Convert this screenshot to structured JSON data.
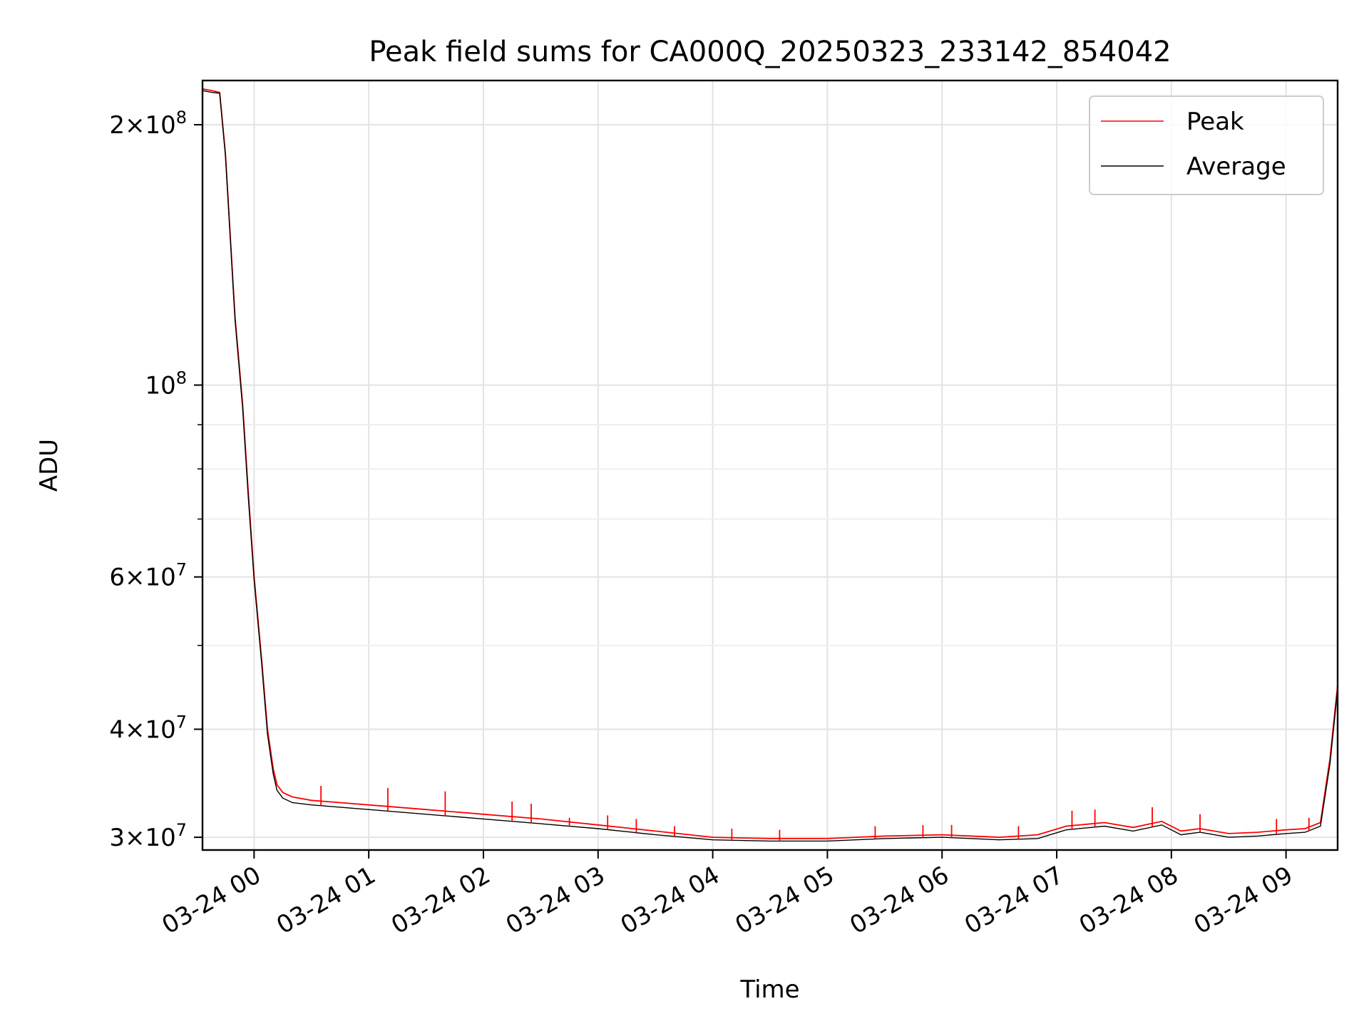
{
  "chart_data": {
    "type": "line",
    "title": "Peak field sums for CA000Q_20250323_233142_854042",
    "xlabel": "Time",
    "ylabel": "ADU",
    "yscale": "log",
    "ylim": [
      29000000,
      225000000
    ],
    "xlim": [
      "2025-03-23 23:33",
      "2025-03-24 09:27"
    ],
    "grid": true,
    "legend_position": "top-right",
    "x_ticks": [
      {
        "value": "2025-03-24 00:00",
        "label": "03-24 00"
      },
      {
        "value": "2025-03-24 01:00",
        "label": "03-24 01"
      },
      {
        "value": "2025-03-24 02:00",
        "label": "03-24 02"
      },
      {
        "value": "2025-03-24 03:00",
        "label": "03-24 03"
      },
      {
        "value": "2025-03-24 04:00",
        "label": "03-24 04"
      },
      {
        "value": "2025-03-24 05:00",
        "label": "03-24 05"
      },
      {
        "value": "2025-03-24 06:00",
        "label": "03-24 06"
      },
      {
        "value": "2025-03-24 07:00",
        "label": "03-24 07"
      },
      {
        "value": "2025-03-24 08:00",
        "label": "03-24 08"
      },
      {
        "value": "2025-03-24 09:00",
        "label": "03-24 09"
      }
    ],
    "y_ticks": [
      {
        "value": 30000000,
        "mantissa": "3",
        "exp": "7"
      },
      {
        "value": 40000000,
        "mantissa": "4",
        "exp": "7"
      },
      {
        "value": 60000000,
        "mantissa": "6",
        "exp": "7"
      },
      {
        "value": 100000000,
        "mantissa": "",
        "exp": "8"
      },
      {
        "value": 200000000,
        "mantissa": "2",
        "exp": "8"
      }
    ],
    "y_minor_ticks": [
      50000000,
      70000000,
      80000000,
      90000000
    ],
    "series": [
      {
        "name": "Peak",
        "color": "#ff0000",
        "x": [
          "2025-03-23 23:33",
          "2025-03-23 23:38",
          "2025-03-23 23:42",
          "2025-03-23 23:45",
          "2025-03-23 23:50",
          "2025-03-23 23:54",
          "2025-03-23 23:57",
          "2025-03-24 00:00",
          "2025-03-24 00:04",
          "2025-03-24 00:07",
          "2025-03-24 00:10",
          "2025-03-24 00:12",
          "2025-03-24 00:15",
          "2025-03-24 00:20",
          "2025-03-24 00:30",
          "2025-03-24 00:45",
          "2025-03-24 01:00",
          "2025-03-24 01:30",
          "2025-03-24 02:00",
          "2025-03-24 02:30",
          "2025-03-24 03:00",
          "2025-03-24 03:30",
          "2025-03-24 04:00",
          "2025-03-24 04:30",
          "2025-03-24 05:00",
          "2025-03-24 05:30",
          "2025-03-24 06:00",
          "2025-03-24 06:30",
          "2025-03-24 06:50",
          "2025-03-24 07:05",
          "2025-03-24 07:25",
          "2025-03-24 07:40",
          "2025-03-24 07:55",
          "2025-03-24 08:05",
          "2025-03-24 08:15",
          "2025-03-24 08:30",
          "2025-03-24 08:45",
          "2025-03-24 09:00",
          "2025-03-24 09:10",
          "2025-03-24 09:18",
          "2025-03-24 09:23",
          "2025-03-24 09:27"
        ],
        "values": [
          220000000,
          219000000,
          218000000,
          185000000,
          120000000,
          95000000,
          75000000,
          60000000,
          48000000,
          40000000,
          36000000,
          34500000,
          33800000,
          33400000,
          33100000,
          32900000,
          32700000,
          32300000,
          31900000,
          31500000,
          31000000,
          30500000,
          30000000,
          29900000,
          29900000,
          30100000,
          30200000,
          30000000,
          30200000,
          30900000,
          31200000,
          30800000,
          31300000,
          30500000,
          30700000,
          30300000,
          30400000,
          30600000,
          30700000,
          31200000,
          37000000,
          45000000
        ],
        "spikes": [
          {
            "x": "2025-03-24 00:35",
            "y": 34400000
          },
          {
            "x": "2025-03-24 01:10",
            "y": 34200000
          },
          {
            "x": "2025-03-24 01:40",
            "y": 33900000
          },
          {
            "x": "2025-03-24 02:15",
            "y": 33000000
          },
          {
            "x": "2025-03-24 02:25",
            "y": 32800000
          },
          {
            "x": "2025-03-24 02:45",
            "y": 31600000
          },
          {
            "x": "2025-03-24 03:05",
            "y": 31800000
          },
          {
            "x": "2025-03-24 03:20",
            "y": 31500000
          },
          {
            "x": "2025-03-24 03:40",
            "y": 30900000
          },
          {
            "x": "2025-03-24 04:10",
            "y": 30700000
          },
          {
            "x": "2025-03-24 04:35",
            "y": 30600000
          },
          {
            "x": "2025-03-24 05:25",
            "y": 30900000
          },
          {
            "x": "2025-03-24 05:50",
            "y": 31000000
          },
          {
            "x": "2025-03-24 06:05",
            "y": 31000000
          },
          {
            "x": "2025-03-24 06:40",
            "y": 30900000
          },
          {
            "x": "2025-03-24 07:08",
            "y": 32200000
          },
          {
            "x": "2025-03-24 07:20",
            "y": 32300000
          },
          {
            "x": "2025-03-24 07:50",
            "y": 32500000
          },
          {
            "x": "2025-03-24 08:15",
            "y": 31900000
          },
          {
            "x": "2025-03-24 08:55",
            "y": 31500000
          },
          {
            "x": "2025-03-24 09:12",
            "y": 31600000
          }
        ]
      },
      {
        "name": "Average",
        "color": "#000000",
        "x": [
          "2025-03-23 23:33",
          "2025-03-23 23:38",
          "2025-03-23 23:42",
          "2025-03-23 23:45",
          "2025-03-23 23:50",
          "2025-03-23 23:54",
          "2025-03-23 23:57",
          "2025-03-24 00:00",
          "2025-03-24 00:04",
          "2025-03-24 00:07",
          "2025-03-24 00:10",
          "2025-03-24 00:12",
          "2025-03-24 00:15",
          "2025-03-24 00:20",
          "2025-03-24 00:30",
          "2025-03-24 00:45",
          "2025-03-24 01:00",
          "2025-03-24 01:30",
          "2025-03-24 02:00",
          "2025-03-24 02:30",
          "2025-03-24 03:00",
          "2025-03-24 03:30",
          "2025-03-24 04:00",
          "2025-03-24 04:30",
          "2025-03-24 05:00",
          "2025-03-24 05:30",
          "2025-03-24 06:00",
          "2025-03-24 06:30",
          "2025-03-24 06:50",
          "2025-03-24 07:05",
          "2025-03-24 07:25",
          "2025-03-24 07:40",
          "2025-03-24 07:55",
          "2025-03-24 08:05",
          "2025-03-24 08:15",
          "2025-03-24 08:30",
          "2025-03-24 08:45",
          "2025-03-24 09:00",
          "2025-03-24 09:10",
          "2025-03-24 09:18",
          "2025-03-24 09:23",
          "2025-03-24 09:27"
        ],
        "values": [
          219000000,
          218000000,
          217500000,
          184000000,
          119000000,
          94000000,
          74000000,
          59500000,
          47500000,
          39500000,
          35500000,
          34000000,
          33300000,
          32900000,
          32700000,
          32500000,
          32300000,
          31900000,
          31500000,
          31100000,
          30700000,
          30200000,
          29800000,
          29700000,
          29700000,
          29900000,
          30000000,
          29800000,
          29900000,
          30600000,
          30900000,
          30500000,
          31000000,
          30200000,
          30400000,
          30000000,
          30100000,
          30300000,
          30400000,
          30900000,
          36500000,
          44500000
        ]
      }
    ]
  }
}
